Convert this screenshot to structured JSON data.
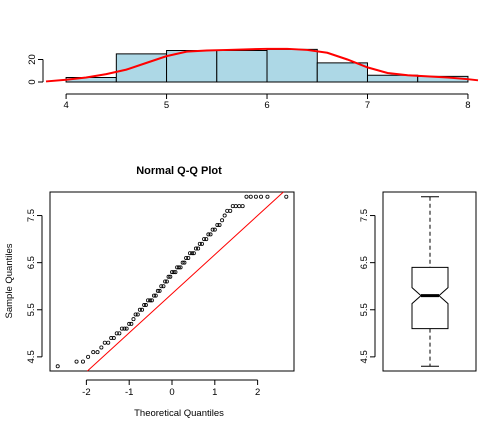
{
  "chart_data": [
    {
      "type": "histogram",
      "panel": "top",
      "title": "",
      "xlabel": "",
      "ylabel": "",
      "xlim": [
        3.8,
        8.1
      ],
      "ylim": [
        0,
        32
      ],
      "x_ticks": [
        4,
        5,
        6,
        7,
        8
      ],
      "y_ticks": [
        0,
        20
      ],
      "bins": [
        {
          "from": 4.0,
          "to": 4.5,
          "count": 4
        },
        {
          "from": 4.5,
          "to": 5.0,
          "count": 25
        },
        {
          "from": 5.0,
          "to": 5.5,
          "count": 28
        },
        {
          "from": 5.5,
          "to": 6.0,
          "count": 28
        },
        {
          "from": 6.0,
          "to": 6.5,
          "count": 29
        },
        {
          "from": 6.5,
          "to": 7.0,
          "count": 17
        },
        {
          "from": 7.0,
          "to": 7.5,
          "count": 6
        },
        {
          "from": 7.5,
          "to": 8.0,
          "count": 5
        }
      ],
      "bar_color": "#ADD8E6",
      "density_curve": {
        "color": "#FF0000",
        "x": [
          3.8,
          4.0,
          4.2,
          4.4,
          4.6,
          4.8,
          5.0,
          5.2,
          5.4,
          5.6,
          5.8,
          6.0,
          6.2,
          6.4,
          6.6,
          6.8,
          7.0,
          7.2,
          7.4,
          7.6,
          7.8,
          8.0,
          8.1
        ],
        "y": [
          0.5,
          2,
          4,
          7,
          11,
          17,
          23,
          27,
          28,
          28.5,
          29,
          29.5,
          29.5,
          28.5,
          26,
          20,
          13,
          8,
          6,
          5,
          4,
          2.5,
          1.5
        ]
      }
    },
    {
      "type": "scatter",
      "panel": "bottom-left",
      "title": "Normal Q-Q Plot",
      "xlabel": "Theoretical Quantiles",
      "ylabel": "Sample Quantiles",
      "xlim": [
        -2.85,
        2.85
      ],
      "ylim": [
        4.2,
        8.0
      ],
      "x_ticks": [
        -2,
        -1,
        0,
        1,
        2
      ],
      "y_ticks": [
        4.5,
        5.5,
        6.5,
        7.5
      ],
      "reference_line": {
        "intercept": 5.84,
        "slope": 0.83,
        "color": "#FF0000"
      },
      "x": [
        -2.67,
        -2.23,
        -2.08,
        -1.96,
        -1.84,
        -1.74,
        -1.65,
        -1.57,
        -1.49,
        -1.42,
        -1.36,
        -1.29,
        -1.23,
        -1.17,
        -1.11,
        -1.06,
        -1.0,
        -0.95,
        -0.9,
        -0.85,
        -0.8,
        -0.75,
        -0.7,
        -0.65,
        -0.61,
        -0.56,
        -0.51,
        -0.47,
        -0.42,
        -0.38,
        -0.33,
        -0.29,
        -0.25,
        -0.2,
        -0.16,
        -0.12,
        -0.08,
        -0.04,
        0.0,
        0.04,
        0.08,
        0.12,
        0.16,
        0.2,
        0.25,
        0.29,
        0.33,
        0.38,
        0.42,
        0.47,
        0.51,
        0.56,
        0.61,
        0.65,
        0.7,
        0.75,
        0.8,
        0.85,
        0.9,
        0.95,
        1.0,
        1.06,
        1.11,
        1.17,
        1.23,
        1.29,
        1.36,
        1.42,
        1.49,
        1.57,
        1.65,
        1.74,
        1.84,
        1.96,
        2.08,
        2.23,
        2.67
      ],
      "y": [
        4.3,
        4.4,
        4.4,
        4.5,
        4.6,
        4.6,
        4.7,
        4.8,
        4.8,
        4.9,
        4.9,
        5.0,
        5.0,
        5.1,
        5.1,
        5.1,
        5.2,
        5.2,
        5.3,
        5.4,
        5.4,
        5.5,
        5.5,
        5.6,
        5.6,
        5.7,
        5.7,
        5.7,
        5.8,
        5.8,
        5.9,
        5.9,
        6.0,
        6.0,
        6.1,
        6.1,
        6.2,
        6.2,
        6.3,
        6.3,
        6.3,
        6.4,
        6.4,
        6.4,
        6.5,
        6.5,
        6.6,
        6.6,
        6.7,
        6.7,
        6.7,
        6.8,
        6.8,
        6.9,
        6.9,
        7.0,
        7.0,
        7.1,
        7.1,
        7.2,
        7.2,
        7.3,
        7.3,
        7.4,
        7.5,
        7.6,
        7.6,
        7.7,
        7.7,
        7.7,
        7.7,
        7.9,
        7.9,
        7.9,
        7.9,
        7.9,
        7.9
      ]
    },
    {
      "type": "boxplot",
      "panel": "bottom-right",
      "title": "",
      "xlabel": "",
      "ylabel": "",
      "ylim": [
        4.2,
        8.0
      ],
      "y_ticks": [
        4.5,
        5.5,
        6.5,
        7.5
      ],
      "notch": true,
      "min": 4.3,
      "q1": 5.1,
      "median": 5.8,
      "q3": 6.4,
      "max": 7.9,
      "notch_low": 5.63,
      "notch_high": 5.97
    }
  ]
}
